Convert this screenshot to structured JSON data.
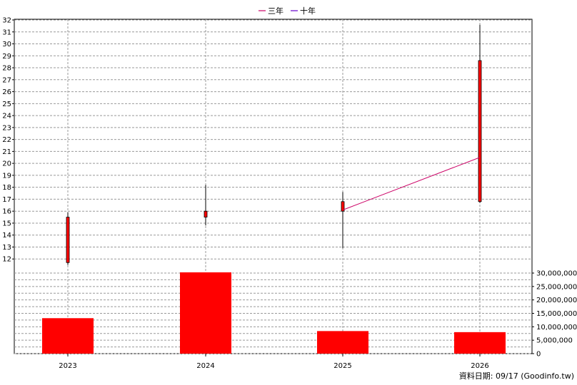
{
  "legend": {
    "items": [
      {
        "label": "三年",
        "color": "#cc0066"
      },
      {
        "label": "十年",
        "color": "#6600cc"
      }
    ]
  },
  "footer": "資料日期: 09/17  (Goodinfo.tw)",
  "chart_data": [
    {
      "type": "candlestick",
      "categories": [
        "2023",
        "2024",
        "2025",
        "2026"
      ],
      "ylim": [
        11,
        32
      ],
      "yticks": [
        12,
        13,
        14,
        15,
        16,
        17,
        18,
        19,
        20,
        21,
        22,
        23,
        24,
        25,
        26,
        27,
        28,
        29,
        30,
        31,
        32
      ],
      "grid": true,
      "candles": [
        {
          "x": "2023",
          "open": 11.7,
          "close": 15.5,
          "high": 15.9,
          "low": 11.5,
          "color": "#ff0000"
        },
        {
          "x": "2024",
          "open": 15.5,
          "close": 16.0,
          "high": 18.2,
          "low": 14.8,
          "color": "#ff0000"
        },
        {
          "x": "2025",
          "open": 16.0,
          "close": 16.8,
          "high": 17.6,
          "low": 12.9,
          "color": "#ff0000"
        },
        {
          "x": "2026",
          "open": 16.8,
          "close": 28.6,
          "high": 31.6,
          "low": 16.7,
          "color": "#ff0000"
        }
      ],
      "series": [
        {
          "name": "三年",
          "color": "#cc0066",
          "x": [
            "2025",
            "2026"
          ],
          "values": [
            16.1,
            20.5
          ]
        }
      ]
    },
    {
      "type": "bar",
      "categories": [
        "2023",
        "2024",
        "2025",
        "2026"
      ],
      "values": [
        13200000,
        31000000,
        8400000,
        8000000
      ],
      "ylim": [
        0,
        30000000
      ],
      "yticks": [
        0,
        5000000,
        10000000,
        15000000,
        20000000,
        25000000,
        30000000
      ],
      "yticklabels": [
        "0",
        "5,000,000",
        "10,000,000",
        "15,000,000",
        "20,000,000",
        "25,000,000",
        "30,000,000"
      ],
      "color": "#ff0000",
      "grid": true
    }
  ]
}
